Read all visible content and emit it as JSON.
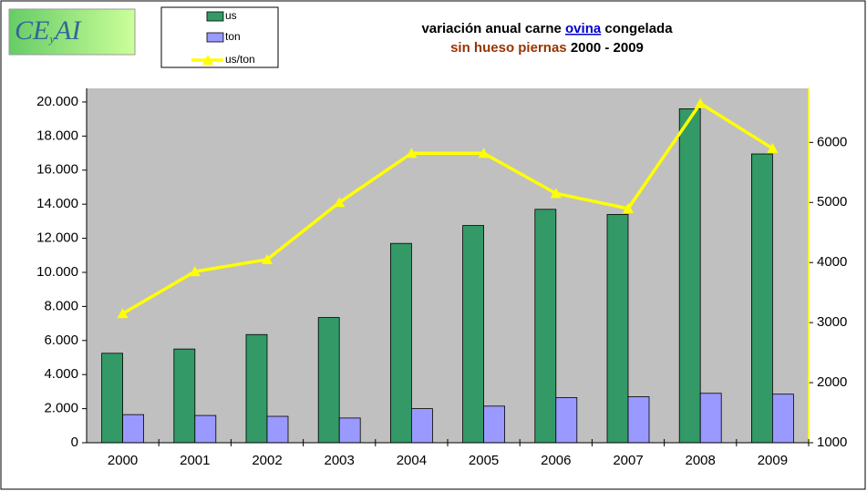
{
  "chart_data": {
    "type": "bar_line",
    "logo": [
      "CE",
      "y",
      "AI"
    ],
    "title": [
      "variación  anual carne",
      "ovina",
      "congelada"
    ],
    "subtitle": [
      "sin hueso piernas",
      "2000 -  2009"
    ],
    "categories": [
      "2000",
      "2001",
      "2002",
      "2003",
      "2004",
      "2005",
      "2006",
      "2007",
      "2008",
      "2009"
    ],
    "series": [
      {
        "name": "us",
        "color": "#339966",
        "type": "bar",
        "values": [
          5250,
          5500,
          6350,
          7350,
          11700,
          12750,
          13700,
          13400,
          19600,
          16950
        ]
      },
      {
        "name": "ton",
        "color": "#9999ff",
        "type": "bar",
        "values": [
          1650,
          1600,
          1550,
          1450,
          2000,
          2150,
          2650,
          2700,
          2900,
          2850
        ]
      },
      {
        "name": "us/ton",
        "color": "#ffff00",
        "type": "line",
        "axis": "y2",
        "values": [
          3150,
          3850,
          4050,
          5000,
          5820,
          5820,
          5150,
          4900,
          6650,
          5900
        ]
      }
    ],
    "ylim": [
      0,
      20800
    ],
    "yticks": [
      0,
      {
        "value": 2000,
        "label": "2.000"
      },
      {
        "value": 4000,
        "label": "4.000"
      },
      {
        "value": 6000,
        "label": "6.000"
      },
      {
        "value": 8000,
        "label": "8.000"
      },
      {
        "value": 10000,
        "label": "10.000"
      },
      {
        "value": 12000,
        "label": "12.000"
      },
      {
        "value": 14000,
        "label": "14.000"
      },
      {
        "value": 16000,
        "label": "16.000"
      },
      {
        "value": 18000,
        "label": "18.000"
      },
      {
        "value": 20000,
        "label": "20.000"
      }
    ],
    "y2lim": [
      1000,
      6900
    ],
    "y2ticks": [
      1000,
      2000,
      3000,
      4000,
      5000,
      6000
    ],
    "plot_background": "#c0c0c0"
  }
}
